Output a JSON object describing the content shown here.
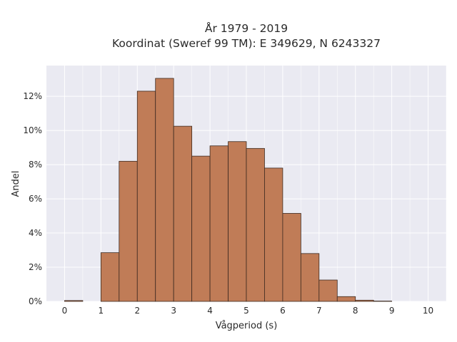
{
  "chart_data": {
    "type": "bar",
    "title_line1": "År 1979 - 2019",
    "title_line2": "Koordinat (Sweref 99 TM): E 349629, N 6243327",
    "xlabel": "Vågperiod (s)",
    "ylabel": "Andel",
    "bin_width": 0.5,
    "bin_starts": [
      0,
      0.5,
      1,
      1.5,
      2,
      2.5,
      3,
      3.5,
      4,
      4.5,
      5,
      5.5,
      6,
      6.5,
      7,
      7.5,
      8,
      8.5,
      9,
      9.5
    ],
    "values": [
      0.05,
      0,
      2.85,
      8.2,
      12.3,
      13.05,
      10.25,
      8.5,
      9.1,
      9.35,
      8.95,
      7.8,
      5.15,
      2.8,
      1.25,
      0.28,
      0.07,
      0.02,
      0,
      0
    ],
    "xlim": [
      -0.5,
      10.5
    ],
    "ylim": [
      0,
      13.8
    ],
    "xticks": [
      0,
      1,
      2,
      3,
      4,
      5,
      6,
      7,
      8,
      9,
      10
    ],
    "xtick_labels": [
      "0",
      "1",
      "2",
      "3",
      "4",
      "5",
      "6",
      "7",
      "8",
      "9",
      "10"
    ],
    "yticks": [
      0,
      2,
      4,
      6,
      8,
      10,
      12
    ],
    "ytick_labels": [
      "0%",
      "2%",
      "4%",
      "6%",
      "8%",
      "10%",
      "12%"
    ],
    "grid": true,
    "colors": {
      "bar_fill": "#c07c57",
      "bar_edge": "#3d2a20",
      "plot_bg": "#eaeaf2",
      "grid": "#ffffff"
    }
  }
}
